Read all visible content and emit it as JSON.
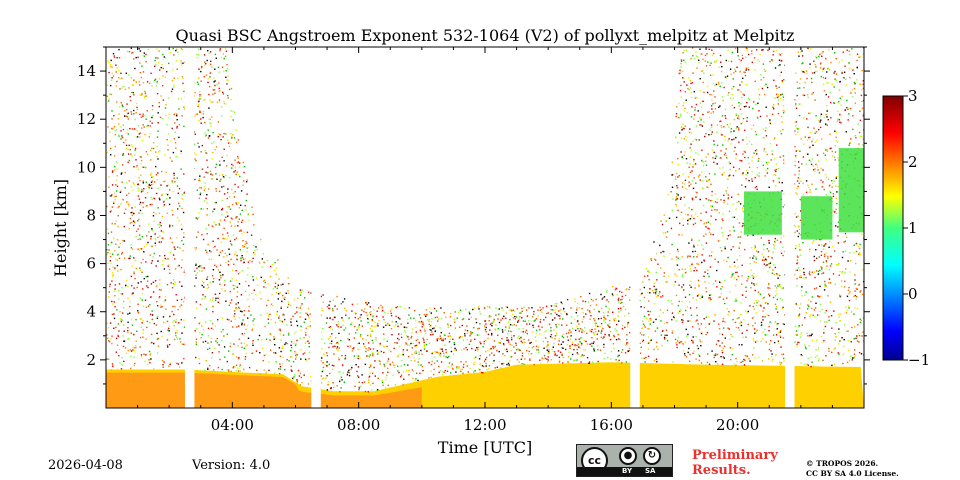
{
  "chart_data": {
    "type": "heatmap",
    "title": "Quasi BSC Angstroem Exponent 532-1064 (V2) of pollyxt_melpitz at Melpitz",
    "xlabel": "Time [UTC]",
    "ylabel": "Height [km]",
    "xlim_hours": [
      0,
      24
    ],
    "ylim_km": [
      0,
      15
    ],
    "x_ticks": [
      {
        "value": 4,
        "label": "04:00"
      },
      {
        "value": 8,
        "label": "08:00"
      },
      {
        "value": 12,
        "label": "12:00"
      },
      {
        "value": 16,
        "label": "16:00"
      },
      {
        "value": 20,
        "label": "20:00"
      }
    ],
    "y_ticks": [
      {
        "value": 2,
        "label": "2"
      },
      {
        "value": 4,
        "label": "4"
      },
      {
        "value": 6,
        "label": "6"
      },
      {
        "value": 8,
        "label": "8"
      },
      {
        "value": 10,
        "label": "10"
      },
      {
        "value": 12,
        "label": "12"
      },
      {
        "value": 14,
        "label": "14"
      }
    ],
    "colorbar": {
      "range": [
        -1,
        3
      ],
      "colormap": "jet",
      "ticks": [
        {
          "value": 3,
          "label": "3"
        },
        {
          "value": 2,
          "label": "2"
        },
        {
          "value": 1,
          "label": "1"
        },
        {
          "value": 0,
          "label": "0"
        },
        {
          "value": -1,
          "label": "−1"
        }
      ]
    },
    "data_gaps_hours": [
      [
        2.5,
        2.8
      ],
      [
        6.5,
        6.8
      ],
      [
        16.6,
        16.9
      ],
      [
        21.5,
        21.8
      ]
    ],
    "boundary_layer_top_km": [
      {
        "x": 0,
        "y": 1.6
      },
      {
        "x": 2.5,
        "y": 1.6
      },
      {
        "x": 4,
        "y": 1.5
      },
      {
        "x": 5.6,
        "y": 1.4
      },
      {
        "x": 6.2,
        "y": 0.9
      },
      {
        "x": 7.2,
        "y": 0.7
      },
      {
        "x": 8.5,
        "y": 0.7
      },
      {
        "x": 9.5,
        "y": 1.0
      },
      {
        "x": 10.5,
        "y": 1.3
      },
      {
        "x": 12,
        "y": 1.5
      },
      {
        "x": 13,
        "y": 1.8
      },
      {
        "x": 16,
        "y": 1.9
      },
      {
        "x": 19,
        "y": 1.8
      },
      {
        "x": 24,
        "y": 1.7
      }
    ],
    "noise_top_km": [
      {
        "x": 0,
        "y": 15
      },
      {
        "x": 2.5,
        "y": 15
      },
      {
        "x": 3.8,
        "y": 15
      },
      {
        "x": 4.2,
        "y": 11
      },
      {
        "x": 4.8,
        "y": 7.5
      },
      {
        "x": 6,
        "y": 5
      },
      {
        "x": 8,
        "y": 4.5
      },
      {
        "x": 10,
        "y": 4.2
      },
      {
        "x": 14,
        "y": 4.3
      },
      {
        "x": 17,
        "y": 5.5
      },
      {
        "x": 17.8,
        "y": 9
      },
      {
        "x": 18.2,
        "y": 15
      },
      {
        "x": 24,
        "y": 15
      }
    ],
    "green_patches": [
      {
        "x0": 20.2,
        "x1": 21.4,
        "y0": 7.2,
        "y1": 9.0,
        "value": 1.0
      },
      {
        "x0": 22.0,
        "x1": 23.0,
        "y0": 7.0,
        "y1": 8.8,
        "value": 0.9
      },
      {
        "x0": 23.2,
        "x1": 24.0,
        "y0": 7.3,
        "y1": 10.8,
        "value": 0.8
      }
    ]
  },
  "footer": {
    "date": "2026-04-08",
    "version": "Version: 4.0",
    "preliminary_line1": "Preliminary",
    "preliminary_line2": "Results.",
    "copyright_line1": "© TROPOS 2026.",
    "copyright_line2": "CC BY SA 4.0 License.",
    "cc_by": "BY",
    "cc_sa": "SA",
    "cc_symbol": "cc"
  }
}
